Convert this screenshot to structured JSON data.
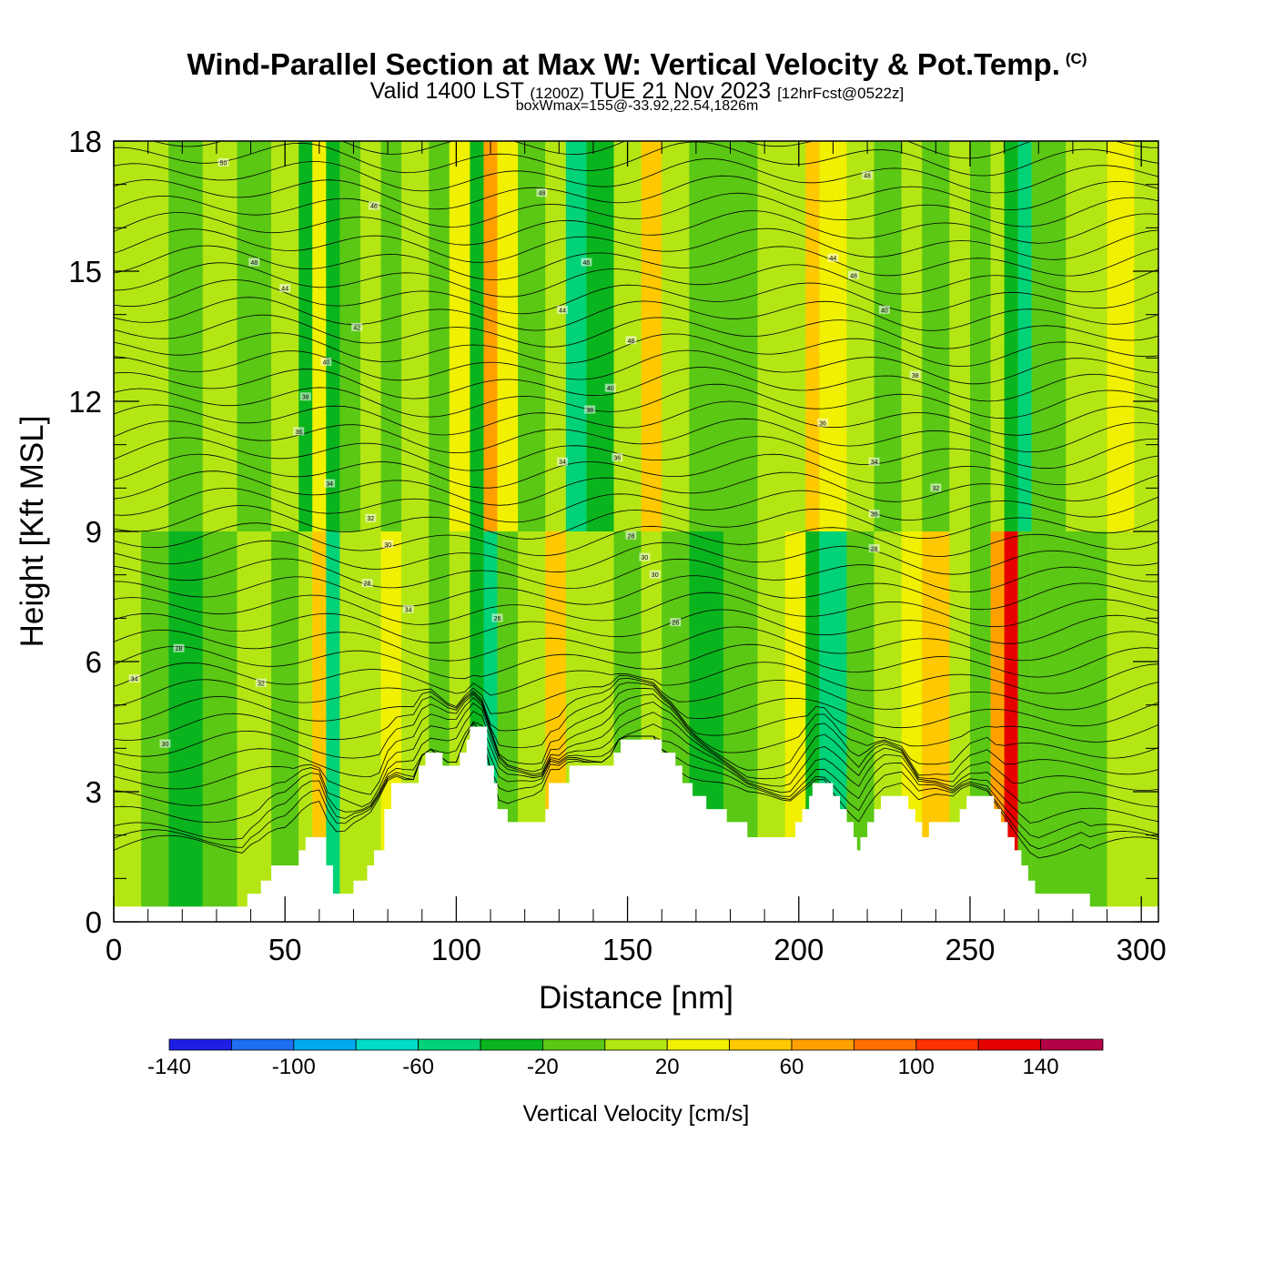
{
  "header": {
    "title": "Wind-Parallel Section at Max W: Vertical Velocity & Pot.Temp.",
    "copyright": "(C)",
    "valid_a": "Valid 1400 LST",
    "valid_b": "(1200Z)",
    "valid_c": "TUE 21 Nov 2023",
    "valid_d": "[12hrFcst@0522z]",
    "boxinfo": "boxWmax=155@-33.92,22.54,1826m"
  },
  "chart_data": {
    "type": "heatmap",
    "xlabel": "Distance [nm]",
    "ylabel": "Height [Kft MSL]",
    "xlim": [
      0,
      305
    ],
    "ylim": [
      0,
      18
    ],
    "xticks": [
      0,
      50,
      100,
      150,
      200,
      250,
      300
    ],
    "yticks": [
      0,
      3,
      6,
      9,
      12,
      15,
      18
    ],
    "colorbar": {
      "title": "Vertical Velocity [cm/s]",
      "range": [
        -140,
        160
      ],
      "labels": [
        "-140",
        "-100",
        "-60",
        "-20",
        "20",
        "60",
        "100",
        "140"
      ],
      "bins": [
        {
          "from": -140,
          "to": -120,
          "color": "#1e1ee6"
        },
        {
          "from": -120,
          "to": -100,
          "color": "#1e6ef0"
        },
        {
          "from": -100,
          "to": -80,
          "color": "#00aaf0"
        },
        {
          "from": -80,
          "to": -60,
          "color": "#00dcc8"
        },
        {
          "from": -60,
          "to": -40,
          "color": "#00d278"
        },
        {
          "from": -40,
          "to": -20,
          "color": "#0ab41e"
        },
        {
          "from": -20,
          "to": 0,
          "color": "#5ac814"
        },
        {
          "from": 0,
          "to": 20,
          "color": "#b4e614"
        },
        {
          "from": 20,
          "to": 40,
          "color": "#f0f000"
        },
        {
          "from": 40,
          "to": 60,
          "color": "#ffc800"
        },
        {
          "from": 60,
          "to": 80,
          "color": "#ffa000"
        },
        {
          "from": 80,
          "to": 100,
          "color": "#ff6e00"
        },
        {
          "from": 100,
          "to": 120,
          "color": "#ff3200"
        },
        {
          "from": 120,
          "to": 140,
          "color": "#e60000"
        },
        {
          "from": 140,
          "to": 160,
          "color": "#b40046"
        }
      ]
    },
    "wmax": {
      "value": 155,
      "lat": -33.92,
      "lon": 22.54,
      "height_m": 1826
    },
    "terrain_kft": [
      [
        0,
        0.35
      ],
      [
        38,
        0.35
      ],
      [
        39,
        0.65
      ],
      [
        43,
        0.95
      ],
      [
        46,
        1.3
      ],
      [
        50,
        1.3
      ],
      [
        54,
        1.65
      ],
      [
        56,
        1.95
      ],
      [
        60,
        1.95
      ],
      [
        62,
        1.3
      ],
      [
        64,
        0.65
      ],
      [
        68,
        0.65
      ],
      [
        70,
        0.95
      ],
      [
        74,
        1.3
      ],
      [
        76,
        1.65
      ],
      [
        79,
        2.6
      ],
      [
        81,
        3.2
      ],
      [
        88,
        3.2
      ],
      [
        89,
        3.6
      ],
      [
        91,
        3.9
      ],
      [
        94,
        3.9
      ],
      [
        96,
        3.6
      ],
      [
        100,
        3.6
      ],
      [
        101,
        3.9
      ],
      [
        103,
        4.2
      ],
      [
        104,
        4.5
      ],
      [
        107,
        4.5
      ],
      [
        109,
        3.6
      ],
      [
        111,
        3.2
      ],
      [
        112,
        2.6
      ],
      [
        115,
        2.3
      ],
      [
        124,
        2.3
      ],
      [
        126,
        2.6
      ],
      [
        127,
        3.2
      ],
      [
        131,
        3.2
      ],
      [
        133,
        3.6
      ],
      [
        144,
        3.6
      ],
      [
        146,
        3.9
      ],
      [
        148,
        4.2
      ],
      [
        158,
        4.2
      ],
      [
        160,
        3.9
      ],
      [
        164,
        3.6
      ],
      [
        166,
        3.2
      ],
      [
        169,
        2.9
      ],
      [
        173,
        2.6
      ],
      [
        179,
        2.3
      ],
      [
        185,
        1.95
      ],
      [
        197,
        1.95
      ],
      [
        199,
        2.3
      ],
      [
        201,
        2.6
      ],
      [
        203,
        2.9
      ],
      [
        204,
        3.2
      ],
      [
        209,
        3.2
      ],
      [
        210,
        2.9
      ],
      [
        212,
        2.6
      ],
      [
        214,
        2.3
      ],
      [
        216,
        1.95
      ],
      [
        217,
        1.65
      ],
      [
        218,
        1.95
      ],
      [
        220,
        2.3
      ],
      [
        222,
        2.6
      ],
      [
        224,
        2.9
      ],
      [
        230,
        2.9
      ],
      [
        232,
        2.6
      ],
      [
        234,
        2.3
      ],
      [
        236,
        1.95
      ],
      [
        238,
        2.3
      ],
      [
        245,
        2.3
      ],
      [
        247,
        2.6
      ],
      [
        249,
        2.9
      ],
      [
        255,
        2.9
      ],
      [
        257,
        2.6
      ],
      [
        259,
        2.3
      ],
      [
        261,
        1.95
      ],
      [
        263,
        1.65
      ],
      [
        265,
        1.3
      ],
      [
        267,
        0.95
      ],
      [
        269,
        0.65
      ],
      [
        283,
        0.65
      ],
      [
        285,
        0.35
      ],
      [
        305,
        0.35
      ]
    ],
    "velocity_columns": [
      {
        "x0": 0,
        "x1": 8,
        "w_upper": 0,
        "w_lower": 0
      },
      {
        "x0": 8,
        "x1": 16,
        "w_upper": 10,
        "w_lower": -10
      },
      {
        "x0": 16,
        "x1": 26,
        "w_upper": -10,
        "w_lower": -25
      },
      {
        "x0": 26,
        "x1": 36,
        "w_upper": 0,
        "w_lower": -10
      },
      {
        "x0": 36,
        "x1": 46,
        "w_upper": -10,
        "w_lower": 0
      },
      {
        "x0": 46,
        "x1": 54,
        "w_upper": 0,
        "w_lower": -10
      },
      {
        "x0": 54,
        "x1": 58,
        "w_upper": -25,
        "w_lower": 10
      },
      {
        "x0": 58,
        "x1": 62,
        "w_upper": 30,
        "w_lower": 50
      },
      {
        "x0": 62,
        "x1": 66,
        "w_upper": -30,
        "w_lower": -50
      },
      {
        "x0": 66,
        "x1": 72,
        "w_upper": -10,
        "w_lower": 0
      },
      {
        "x0": 72,
        "x1": 78,
        "w_upper": 10,
        "w_lower": 10
      },
      {
        "x0": 78,
        "x1": 84,
        "w_upper": -10,
        "w_lower": 30
      },
      {
        "x0": 84,
        "x1": 92,
        "w_upper": 10,
        "w_lower": 10
      },
      {
        "x0": 92,
        "x1": 98,
        "w_upper": -10,
        "w_lower": -10
      },
      {
        "x0": 98,
        "x1": 104,
        "w_upper": 30,
        "w_lower": 10
      },
      {
        "x0": 104,
        "x1": 108,
        "w_upper": -30,
        "w_lower": -30
      },
      {
        "x0": 108,
        "x1": 112,
        "w_upper": 70,
        "w_lower": -50
      },
      {
        "x0": 112,
        "x1": 118,
        "w_upper": 30,
        "w_lower": -10
      },
      {
        "x0": 118,
        "x1": 126,
        "w_upper": -10,
        "w_lower": 10
      },
      {
        "x0": 126,
        "x1": 132,
        "w_upper": 10,
        "w_lower": 50
      },
      {
        "x0": 132,
        "x1": 138,
        "w_upper": -50,
        "w_lower": 10
      },
      {
        "x0": 138,
        "x1": 146,
        "w_upper": -30,
        "w_lower": 10
      },
      {
        "x0": 146,
        "x1": 154,
        "w_upper": 10,
        "w_lower": -10
      },
      {
        "x0": 154,
        "x1": 160,
        "w_upper": 50,
        "w_lower": 10
      },
      {
        "x0": 160,
        "x1": 168,
        "w_upper": 10,
        "w_lower": -10
      },
      {
        "x0": 168,
        "x1": 178,
        "w_upper": -10,
        "w_lower": -30
      },
      {
        "x0": 178,
        "x1": 188,
        "w_upper": -10,
        "w_lower": -10
      },
      {
        "x0": 188,
        "x1": 196,
        "w_upper": 10,
        "w_lower": 10
      },
      {
        "x0": 196,
        "x1": 202,
        "w_upper": 10,
        "w_lower": 30
      },
      {
        "x0": 202,
        "x1": 206,
        "w_upper": 50,
        "w_lower": -30
      },
      {
        "x0": 206,
        "x1": 214,
        "w_upper": 30,
        "w_lower": -50
      },
      {
        "x0": 214,
        "x1": 222,
        "w_upper": 10,
        "w_lower": -10
      },
      {
        "x0": 222,
        "x1": 230,
        "w_upper": -10,
        "w_lower": 10
      },
      {
        "x0": 230,
        "x1": 236,
        "w_upper": 10,
        "w_lower": 30
      },
      {
        "x0": 236,
        "x1": 244,
        "w_upper": -10,
        "w_lower": 50
      },
      {
        "x0": 244,
        "x1": 250,
        "w_upper": 10,
        "w_lower": 10
      },
      {
        "x0": 250,
        "x1": 256,
        "w_upper": -10,
        "w_lower": -10
      },
      {
        "x0": 256,
        "x1": 260,
        "w_upper": 10,
        "w_lower": 70
      },
      {
        "x0": 260,
        "x1": 264,
        "w_upper": -30,
        "w_lower": 130
      },
      {
        "x0": 264,
        "x1": 268,
        "w_upper": -50,
        "w_lower": -10
      },
      {
        "x0": 268,
        "x1": 278,
        "w_upper": -10,
        "w_lower": -10
      },
      {
        "x0": 278,
        "x1": 290,
        "w_upper": 10,
        "w_lower": -10
      },
      {
        "x0": 290,
        "x1": 298,
        "w_upper": 30,
        "w_lower": 10
      },
      {
        "x0": 298,
        "x1": 305,
        "w_upper": 0,
        "w_lower": 0
      }
    ],
    "contour_labels": [
      {
        "text": "50",
        "x": 32,
        "y": 17.5
      },
      {
        "text": "46",
        "x": 76,
        "y": 16.5
      },
      {
        "text": "48",
        "x": 125,
        "y": 16.8
      },
      {
        "text": "48",
        "x": 220,
        "y": 17.2
      },
      {
        "text": "48",
        "x": 41,
        "y": 15.2
      },
      {
        "text": "44",
        "x": 50,
        "y": 14.6
      },
      {
        "text": "46",
        "x": 138,
        "y": 15.2
      },
      {
        "text": "44",
        "x": 210,
        "y": 15.3
      },
      {
        "text": "48",
        "x": 216,
        "y": 14.9
      },
      {
        "text": "42",
        "x": 71,
        "y": 13.7
      },
      {
        "text": "44",
        "x": 131,
        "y": 14.1
      },
      {
        "text": "40",
        "x": 225,
        "y": 14.1
      },
      {
        "text": "40",
        "x": 62,
        "y": 12.9
      },
      {
        "text": "48",
        "x": 151,
        "y": 13.4
      },
      {
        "text": "38",
        "x": 56,
        "y": 12.1
      },
      {
        "text": "40",
        "x": 145,
        "y": 12.3
      },
      {
        "text": "38",
        "x": 234,
        "y": 12.6
      },
      {
        "text": "36",
        "x": 54,
        "y": 11.3
      },
      {
        "text": "38",
        "x": 139,
        "y": 11.8
      },
      {
        "text": "36",
        "x": 207,
        "y": 11.5
      },
      {
        "text": "34",
        "x": 63,
        "y": 10.1
      },
      {
        "text": "34",
        "x": 131,
        "y": 10.6
      },
      {
        "text": "36",
        "x": 147,
        "y": 10.7
      },
      {
        "text": "34",
        "x": 222,
        "y": 10.6
      },
      {
        "text": "32",
        "x": 75,
        "y": 9.3
      },
      {
        "text": "32",
        "x": 240,
        "y": 10.0
      },
      {
        "text": "30",
        "x": 222,
        "y": 9.4
      },
      {
        "text": "30",
        "x": 80,
        "y": 8.7
      },
      {
        "text": "28",
        "x": 151,
        "y": 8.9
      },
      {
        "text": "30",
        "x": 155,
        "y": 8.4
      },
      {
        "text": "28",
        "x": 222,
        "y": 8.6
      },
      {
        "text": "28",
        "x": 74,
        "y": 7.8
      },
      {
        "text": "30",
        "x": 158,
        "y": 8.0
      },
      {
        "text": "34",
        "x": 86,
        "y": 7.2
      },
      {
        "text": "26",
        "x": 112,
        "y": 7.0
      },
      {
        "text": "28",
        "x": 164,
        "y": 6.9
      },
      {
        "text": "28",
        "x": 19,
        "y": 6.3
      },
      {
        "text": "34",
        "x": 6,
        "y": 5.6
      },
      {
        "text": "32",
        "x": 43,
        "y": 5.5
      },
      {
        "text": "30",
        "x": 15,
        "y": 4.1
      }
    ]
  }
}
